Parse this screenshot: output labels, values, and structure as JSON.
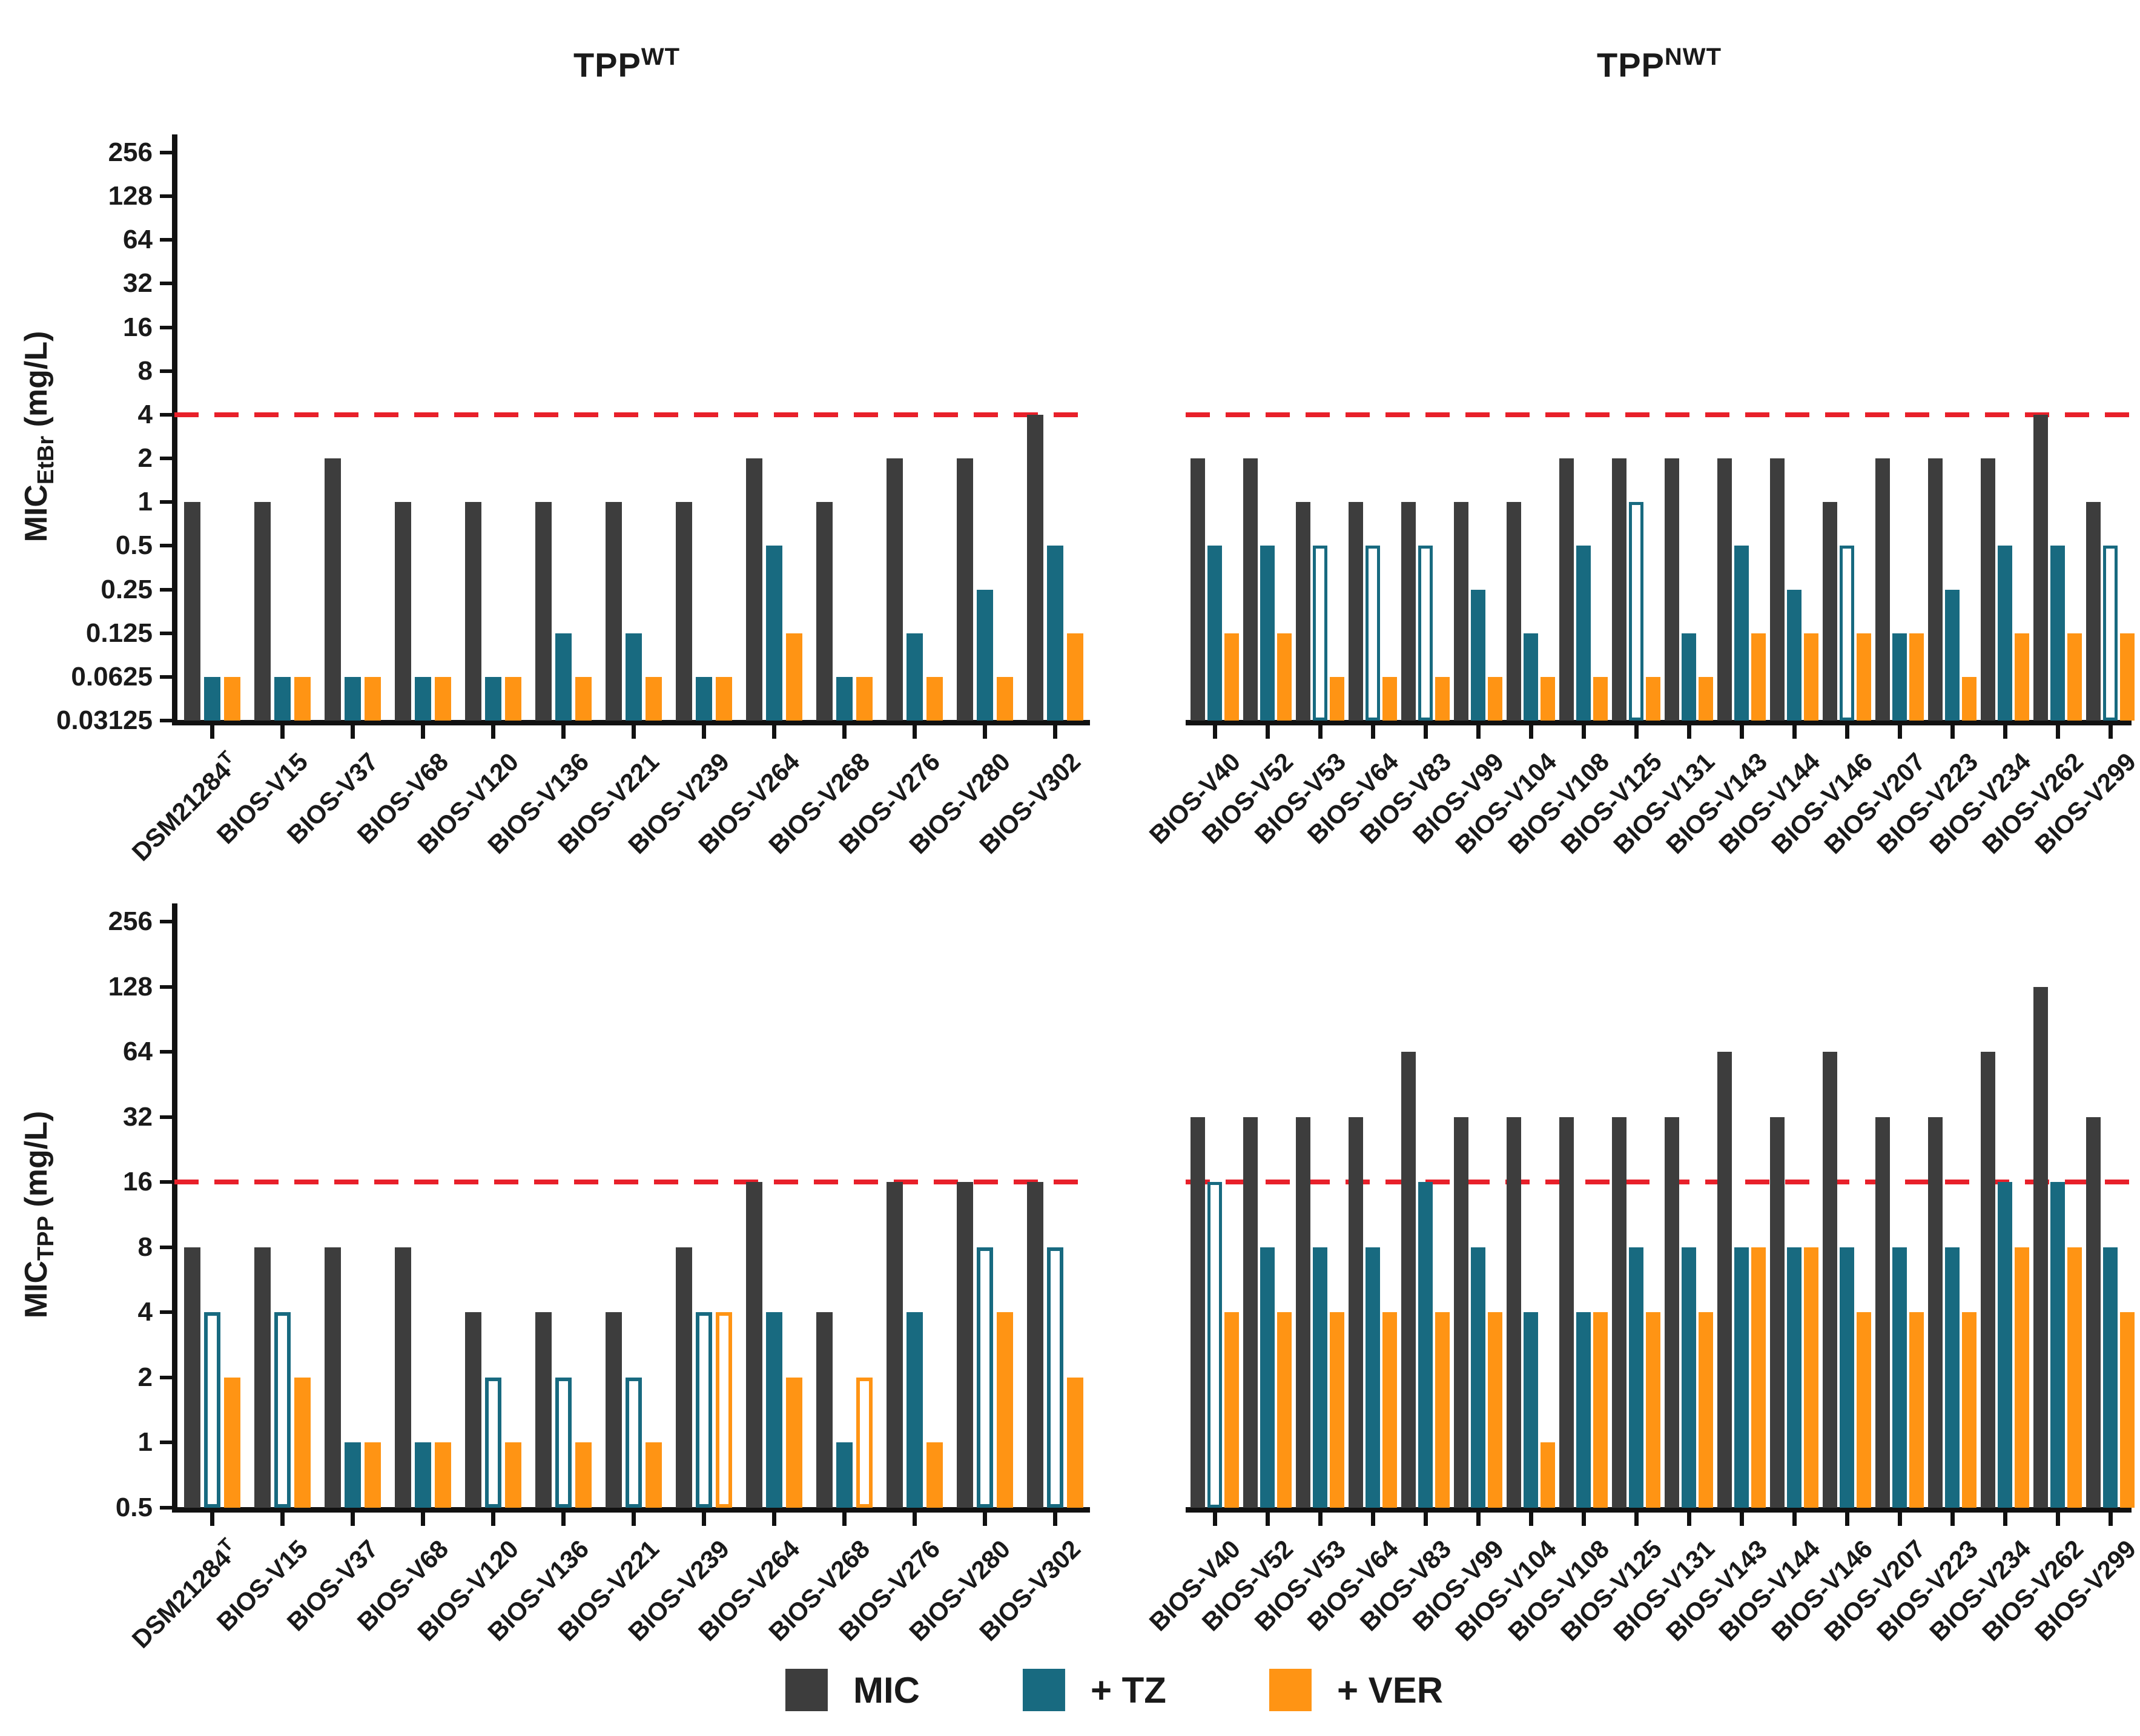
{
  "figure": {
    "titles": [
      {
        "text": "TPP",
        "sup": "WT"
      },
      {
        "text": "TPP",
        "sup": "NWT"
      }
    ],
    "legend": {
      "items": [
        {
          "label": "MIC",
          "color": "#3d3d3d"
        },
        {
          "label": "+ TZ",
          "color": "#186a80"
        },
        {
          "label": "+ VER",
          "color": "#ff9414"
        }
      ]
    },
    "colors": {
      "mic": "#3d3d3d",
      "tz": "#186a80",
      "ver": "#ff9414",
      "threshold": "#e8202a",
      "axis": "#111111"
    }
  },
  "chart_data": [
    {
      "id": "top-left",
      "type": "bar",
      "scale": "log2",
      "ylabel": {
        "pre": "MIC",
        "sub": "EtBr",
        "post": " (mg/L)"
      },
      "yticks": [
        "256",
        "128",
        "64",
        "32",
        "16",
        "8",
        "4",
        "2",
        "1",
        "0.5",
        "0.25",
        "0.125",
        "0.0625",
        "0.03125"
      ],
      "ymin": 0.03125,
      "ymax": 256,
      "threshold": 4,
      "grid": false,
      "categories": [
        "DSM21284^T",
        "BIOS-V15",
        "BIOS-V37",
        "BIOS-V68",
        "BIOS-V120",
        "BIOS-V136",
        "BIOS-V221",
        "BIOS-V239",
        "BIOS-V264",
        "BIOS-V268",
        "BIOS-V276",
        "BIOS-V280",
        "BIOS-V302"
      ],
      "series": [
        {
          "name": "MIC",
          "color": "#3d3d3d",
          "values": [
            1,
            1,
            2,
            1,
            1,
            1,
            1,
            1,
            2,
            1,
            2,
            2,
            4
          ],
          "hollow": [
            false,
            false,
            false,
            false,
            false,
            false,
            false,
            false,
            false,
            false,
            false,
            false,
            false
          ]
        },
        {
          "name": "+ TZ",
          "color": "#186a80",
          "values": [
            0.0625,
            0.0625,
            0.0625,
            0.0625,
            0.0625,
            0.125,
            0.125,
            0.0625,
            0.5,
            0.0625,
            0.125,
            0.25,
            0.5
          ],
          "hollow": [
            false,
            false,
            false,
            false,
            false,
            false,
            false,
            false,
            false,
            false,
            false,
            false,
            false
          ]
        },
        {
          "name": "+ VER",
          "color": "#ff9414",
          "values": [
            0.0625,
            0.0625,
            0.0625,
            0.0625,
            0.0625,
            0.0625,
            0.0625,
            0.0625,
            0.125,
            0.0625,
            0.0625,
            0.0625,
            0.125
          ],
          "hollow": [
            false,
            false,
            false,
            false,
            false,
            false,
            false,
            false,
            false,
            false,
            false,
            false,
            false
          ]
        }
      ]
    },
    {
      "id": "top-right",
      "type": "bar",
      "scale": "log2",
      "ylabel": null,
      "yticks": [
        "256",
        "128",
        "64",
        "32",
        "16",
        "8",
        "4",
        "2",
        "1",
        "0.5",
        "0.25",
        "0.125",
        "0.0625",
        "0.03125"
      ],
      "ymin": 0.03125,
      "ymax": 256,
      "threshold": 4,
      "grid": false,
      "categories": [
        "BIOS-V40",
        "BIOS-V52",
        "BIOS-V53",
        "BIOS-V64",
        "BIOS-V83",
        "BIOS-V99",
        "BIOS-V104",
        "BIOS-V108",
        "BIOS-V125",
        "BIOS-V131",
        "BIOS-V143",
        "BIOS-V144",
        "BIOS-V146",
        "BIOS-V207",
        "BIOS-V223",
        "BIOS-V234",
        "BIOS-V262",
        "BIOS-V299"
      ],
      "series": [
        {
          "name": "MIC",
          "color": "#3d3d3d",
          "values": [
            2,
            2,
            1,
            1,
            1,
            1,
            1,
            2,
            2,
            2,
            2,
            2,
            1,
            2,
            2,
            2,
            4,
            1
          ],
          "hollow": [
            false,
            false,
            false,
            false,
            false,
            false,
            false,
            false,
            false,
            false,
            false,
            false,
            false,
            false,
            false,
            false,
            false,
            false
          ]
        },
        {
          "name": "+ TZ",
          "color": "#186a80",
          "values": [
            0.5,
            0.5,
            0.5,
            0.5,
            0.5,
            0.25,
            0.125,
            0.5,
            1,
            0.125,
            0.5,
            0.25,
            0.5,
            0.125,
            0.25,
            0.5,
            0.5,
            0.5
          ],
          "hollow": [
            false,
            false,
            true,
            true,
            true,
            false,
            false,
            false,
            true,
            false,
            false,
            false,
            true,
            false,
            false,
            false,
            false,
            true
          ]
        },
        {
          "name": "+ VER",
          "color": "#ff9414",
          "values": [
            0.125,
            0.125,
            0.0625,
            0.0625,
            0.0625,
            0.0625,
            0.0625,
            0.0625,
            0.0625,
            0.0625,
            0.125,
            0.125,
            0.125,
            0.125,
            0.0625,
            0.125,
            0.125,
            0.125
          ],
          "hollow": [
            false,
            false,
            false,
            false,
            false,
            false,
            false,
            false,
            false,
            false,
            false,
            false,
            false,
            false,
            false,
            false,
            false,
            false
          ]
        }
      ]
    },
    {
      "id": "bottom-left",
      "type": "bar",
      "scale": "log2",
      "ylabel": {
        "pre": "MIC",
        "sub": "TPP",
        "post": " (mg/L)"
      },
      "yticks": [
        "256",
        "128",
        "64",
        "32",
        "16",
        "8",
        "4",
        "2",
        "1",
        "0.5"
      ],
      "ymin": 0.5,
      "ymax": 256,
      "threshold": 16,
      "grid": false,
      "categories": [
        "DSM21284^T",
        "BIOS-V15",
        "BIOS-V37",
        "BIOS-V68",
        "BIOS-V120",
        "BIOS-V136",
        "BIOS-V221",
        "BIOS-V239",
        "BIOS-V264",
        "BIOS-V268",
        "BIOS-V276",
        "BIOS-V280",
        "BIOS-V302"
      ],
      "series": [
        {
          "name": "MIC",
          "color": "#3d3d3d",
          "values": [
            8,
            8,
            8,
            8,
            4,
            4,
            4,
            8,
            16,
            4,
            16,
            16,
            16
          ],
          "hollow": [
            false,
            false,
            false,
            false,
            false,
            false,
            false,
            false,
            false,
            false,
            false,
            false,
            false
          ]
        },
        {
          "name": "+ TZ",
          "color": "#186a80",
          "values": [
            4,
            4,
            1,
            1,
            2,
            2,
            2,
            4,
            4,
            1,
            4,
            8,
            8
          ],
          "hollow": [
            true,
            true,
            false,
            false,
            true,
            true,
            true,
            true,
            false,
            false,
            false,
            true,
            true
          ]
        },
        {
          "name": "+ VER",
          "color": "#ff9414",
          "values": [
            2,
            2,
            1,
            1,
            1,
            1,
            1,
            4,
            2,
            2,
            1,
            4,
            2
          ],
          "hollow": [
            false,
            false,
            false,
            false,
            false,
            false,
            false,
            true,
            false,
            true,
            false,
            false,
            false
          ]
        }
      ]
    },
    {
      "id": "bottom-right",
      "type": "bar",
      "scale": "log2",
      "ylabel": null,
      "yticks": [
        "256",
        "128",
        "64",
        "32",
        "16",
        "8",
        "4",
        "2",
        "1",
        "0.5"
      ],
      "ymin": 0.5,
      "ymax": 256,
      "threshold": 16,
      "grid": false,
      "categories": [
        "BIOS-V40",
        "BIOS-V52",
        "BIOS-V53",
        "BIOS-V64",
        "BIOS-V83",
        "BIOS-V99",
        "BIOS-V104",
        "BIOS-V108",
        "BIOS-V125",
        "BIOS-V131",
        "BIOS-V143",
        "BIOS-V144",
        "BIOS-V146",
        "BIOS-V207",
        "BIOS-V223",
        "BIOS-V234",
        "BIOS-V262",
        "BIOS-V299"
      ],
      "series": [
        {
          "name": "MIC",
          "color": "#3d3d3d",
          "values": [
            32,
            32,
            32,
            32,
            64,
            32,
            32,
            32,
            32,
            32,
            64,
            32,
            64,
            32,
            32,
            64,
            128,
            32
          ],
          "hollow": [
            false,
            false,
            false,
            false,
            false,
            false,
            false,
            false,
            false,
            false,
            false,
            false,
            false,
            false,
            false,
            false,
            false,
            false
          ]
        },
        {
          "name": "+ TZ",
          "color": "#186a80",
          "values": [
            16,
            8,
            8,
            8,
            16,
            8,
            4,
            4,
            8,
            8,
            8,
            8,
            8,
            8,
            8,
            16,
            16,
            8
          ],
          "hollow": [
            true,
            false,
            false,
            false,
            false,
            false,
            false,
            false,
            false,
            false,
            false,
            false,
            false,
            false,
            false,
            false,
            false,
            false
          ]
        },
        {
          "name": "+ VER",
          "color": "#ff9414",
          "values": [
            4,
            4,
            4,
            4,
            4,
            4,
            1,
            4,
            4,
            4,
            8,
            8,
            4,
            4,
            4,
            8,
            8,
            4
          ],
          "hollow": [
            false,
            false,
            false,
            false,
            false,
            false,
            false,
            false,
            false,
            false,
            false,
            false,
            false,
            false,
            false,
            false,
            false,
            false
          ]
        }
      ]
    }
  ]
}
